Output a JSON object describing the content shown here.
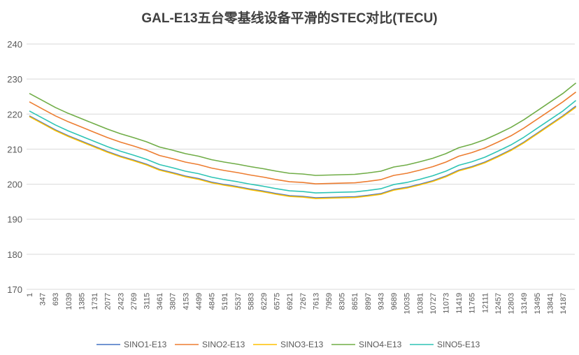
{
  "chart_data": {
    "type": "line",
    "title": "GAL-E13五台零基线设备平滑的STEC对比(TECU)",
    "xlabel": "",
    "ylabel": "",
    "ylim": [
      170,
      240
    ],
    "yticks": [
      170,
      180,
      190,
      200,
      210,
      220,
      230,
      240
    ],
    "grid": true,
    "legend_position": "bottom",
    "x_tick_labels": [
      "1",
      "347",
      "693",
      "1039",
      "1385",
      "1731",
      "2077",
      "2423",
      "2769",
      "3115",
      "3461",
      "3807",
      "4153",
      "4499",
      "4845",
      "5191",
      "5537",
      "5883",
      "6229",
      "6575",
      "6921",
      "7267",
      "7613",
      "7959",
      "8305",
      "8651",
      "8997",
      "9343",
      "9689",
      "10035",
      "10381",
      "10727",
      "11073",
      "11419",
      "11765",
      "12111",
      "12457",
      "12803",
      "13149",
      "13495",
      "13841",
      "14187"
    ],
    "x": [
      1,
      347,
      693,
      1039,
      1385,
      1731,
      2077,
      2423,
      2769,
      3115,
      3461,
      3807,
      4153,
      4499,
      4845,
      5191,
      5537,
      5883,
      6229,
      6575,
      6921,
      7267,
      7613,
      7959,
      8305,
      8651,
      8997,
      9343,
      9689,
      10035,
      10381,
      10727,
      11073,
      11419,
      11765,
      12111,
      12457,
      12803,
      13149,
      13495,
      13841,
      14187,
      14533
    ],
    "series": [
      {
        "name": "SINO1-E13",
        "color": "#4472C4",
        "values": [
          219.5,
          217.5,
          215.5,
          213.8,
          212.3,
          210.8,
          209.3,
          208.0,
          206.9,
          205.7,
          204.2,
          203.3,
          202.3,
          201.6,
          200.6,
          199.9,
          199.3,
          198.6,
          198.0,
          197.3,
          196.7,
          196.5,
          196.1,
          196.2,
          196.3,
          196.4,
          196.8,
          197.3,
          198.5,
          199.1,
          200.0,
          201.0,
          202.3,
          204.0,
          205.0,
          206.3,
          208.0,
          209.8,
          212.0,
          214.5,
          217.0,
          219.5,
          222.3
        ]
      },
      {
        "name": "SINO2-E13",
        "color": "#ED7D31",
        "values": [
          223.5,
          221.5,
          219.5,
          217.8,
          216.3,
          214.8,
          213.3,
          212.0,
          210.9,
          209.7,
          208.2,
          207.3,
          206.3,
          205.6,
          204.6,
          203.9,
          203.3,
          202.6,
          202.0,
          201.3,
          200.7,
          200.5,
          200.1,
          200.2,
          200.3,
          200.4,
          200.8,
          201.3,
          202.5,
          203.1,
          204.0,
          205.0,
          206.3,
          208.0,
          209.0,
          210.3,
          212.0,
          213.8,
          216.0,
          218.5,
          221.0,
          223.5,
          226.3
        ]
      },
      {
        "name": "SINO3-E13",
        "color": "#FFC000",
        "values": [
          219.3,
          217.3,
          215.3,
          213.6,
          212.1,
          210.6,
          209.1,
          207.8,
          206.7,
          205.5,
          204.0,
          203.1,
          202.1,
          201.4,
          200.4,
          199.7,
          199.1,
          198.4,
          197.8,
          197.1,
          196.5,
          196.3,
          195.9,
          196.0,
          196.1,
          196.2,
          196.6,
          197.1,
          198.3,
          198.9,
          199.8,
          200.8,
          202.1,
          203.8,
          204.8,
          206.1,
          207.8,
          209.6,
          211.8,
          214.3,
          216.8,
          219.3,
          222.0
        ]
      },
      {
        "name": "SINO4-E13",
        "color": "#70AD47",
        "values": [
          225.9,
          223.9,
          221.9,
          220.2,
          218.7,
          217.2,
          215.7,
          214.4,
          213.3,
          212.1,
          210.6,
          209.7,
          208.7,
          208.0,
          207.0,
          206.3,
          205.7,
          205.0,
          204.4,
          203.7,
          203.1,
          202.9,
          202.5,
          202.6,
          202.7,
          202.8,
          203.2,
          203.7,
          204.9,
          205.5,
          206.4,
          207.4,
          208.7,
          210.4,
          211.4,
          212.7,
          214.4,
          216.2,
          218.4,
          220.9,
          223.4,
          225.9,
          228.9
        ]
      },
      {
        "name": "SINO5-E13",
        "color": "#2EC4B6",
        "values": [
          220.9,
          218.9,
          216.9,
          215.2,
          213.7,
          212.2,
          210.7,
          209.4,
          208.3,
          207.1,
          205.6,
          204.7,
          203.7,
          203.0,
          202.0,
          201.3,
          200.7,
          200.0,
          199.4,
          198.7,
          198.1,
          197.9,
          197.5,
          197.6,
          197.7,
          197.8,
          198.2,
          198.7,
          199.9,
          200.5,
          201.4,
          202.4,
          203.7,
          205.4,
          206.4,
          207.7,
          209.4,
          211.2,
          213.4,
          215.9,
          218.4,
          220.9,
          223.9
        ]
      }
    ]
  }
}
